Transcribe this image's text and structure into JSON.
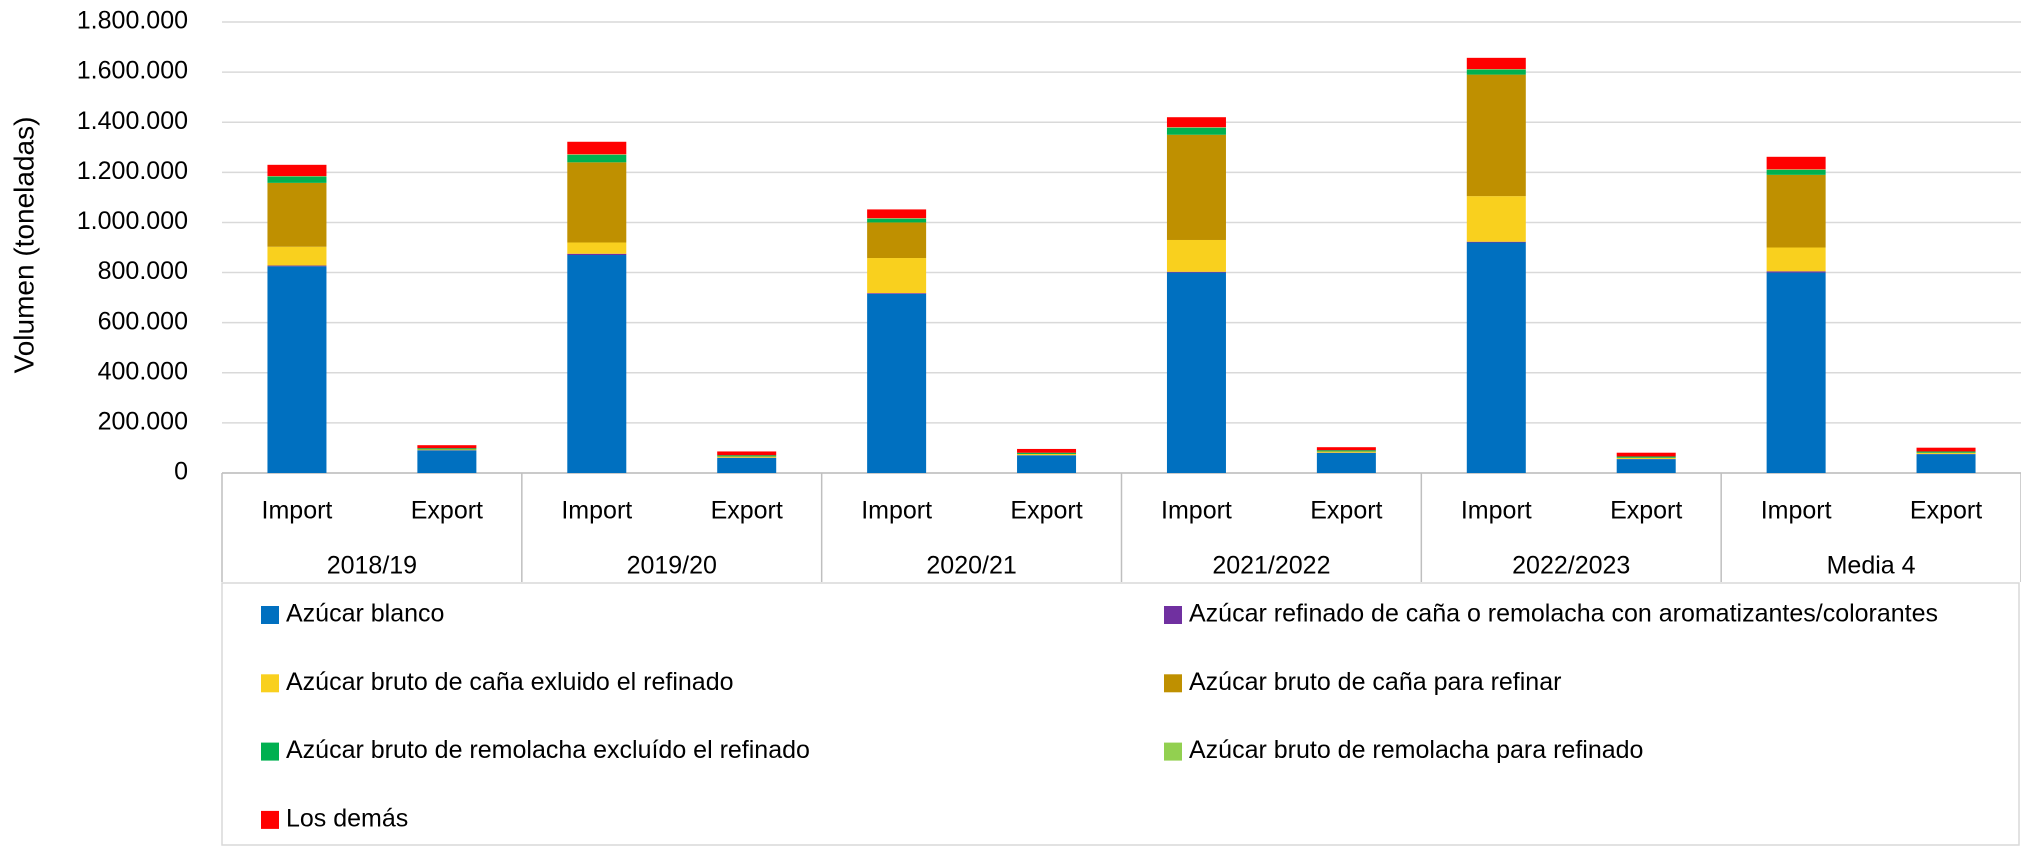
{
  "chart_data": {
    "type": "stacked_bar",
    "y_label": "Volumen (toneladas)",
    "categories": [
      "Import",
      "Export",
      "Import",
      "Export",
      "Import",
      "Export",
      "Import",
      "Export",
      "Import",
      "Export",
      "Import",
      "Export"
    ],
    "groups": [
      "2018/19",
      "2019/20",
      "2020/21",
      "2021/2022",
      "2022/2023",
      "Media 4"
    ],
    "series": [
      {
        "name": "Azúcar blanco",
        "color": "#0070c0",
        "values": [
          825000,
          90000,
          870000,
          60000,
          715000,
          70000,
          800000,
          80000,
          920000,
          55000,
          800000,
          75000
        ]
      },
      {
        "name": "Azúcar refinado de caña o remolacha con aromatizantes/colorantes",
        "color": "#7030a0",
        "values": [
          3000,
          1000,
          5000,
          1000,
          3000,
          1000,
          3000,
          1000,
          3000,
          1000,
          5000,
          1000
        ]
      },
      {
        "name": "Azúcar bruto de caña exluido el refinado",
        "color": "#f9d01e",
        "values": [
          75000,
          3000,
          45000,
          5000,
          140000,
          5000,
          127000,
          5000,
          182000,
          5000,
          95000,
          5000
        ]
      },
      {
        "name": "Azúcar bruto de caña para refinar",
        "color": "#bf9000",
        "values": [
          255000,
          0,
          320000,
          0,
          142000,
          0,
          420000,
          0,
          485000,
          0,
          290000,
          0
        ]
      },
      {
        "name": "Azúcar bruto de remolacha excluído el refinado",
        "color": "#00b050",
        "values": [
          25000,
          5000,
          30000,
          5000,
          15000,
          5000,
          28000,
          5000,
          20000,
          5000,
          20000,
          5000
        ]
      },
      {
        "name": "Azúcar bruto de remolacha para refinado",
        "color": "#92d050",
        "values": [
          2000,
          0,
          2000,
          0,
          2000,
          0,
          2000,
          0,
          2000,
          0,
          2000,
          0
        ]
      },
      {
        "name": "Los demás",
        "color": "#ff0000",
        "values": [
          45000,
          12000,
          50000,
          15000,
          35000,
          15000,
          40000,
          12000,
          45000,
          15000,
          50000,
          15000
        ]
      }
    ],
    "ylim": [
      0,
      1800000
    ],
    "yticks": [
      0,
      {
        "value": 200000,
        "label": "200.000"
      },
      {
        "value": 400000,
        "label": "400.000"
      },
      {
        "value": 600000,
        "label": "600.000"
      },
      {
        "value": 800000,
        "label": "800.000"
      },
      {
        "value": 1000000,
        "label": "1.000.000"
      },
      {
        "value": 1200000,
        "label": "1.200.000"
      },
      {
        "value": 1400000,
        "label": "1.400.000"
      },
      {
        "value": 1600000,
        "label": "1.600.000"
      },
      {
        "value": 1800000,
        "label": "1.800.000"
      }
    ],
    "grid": true,
    "legend": "bottom"
  }
}
